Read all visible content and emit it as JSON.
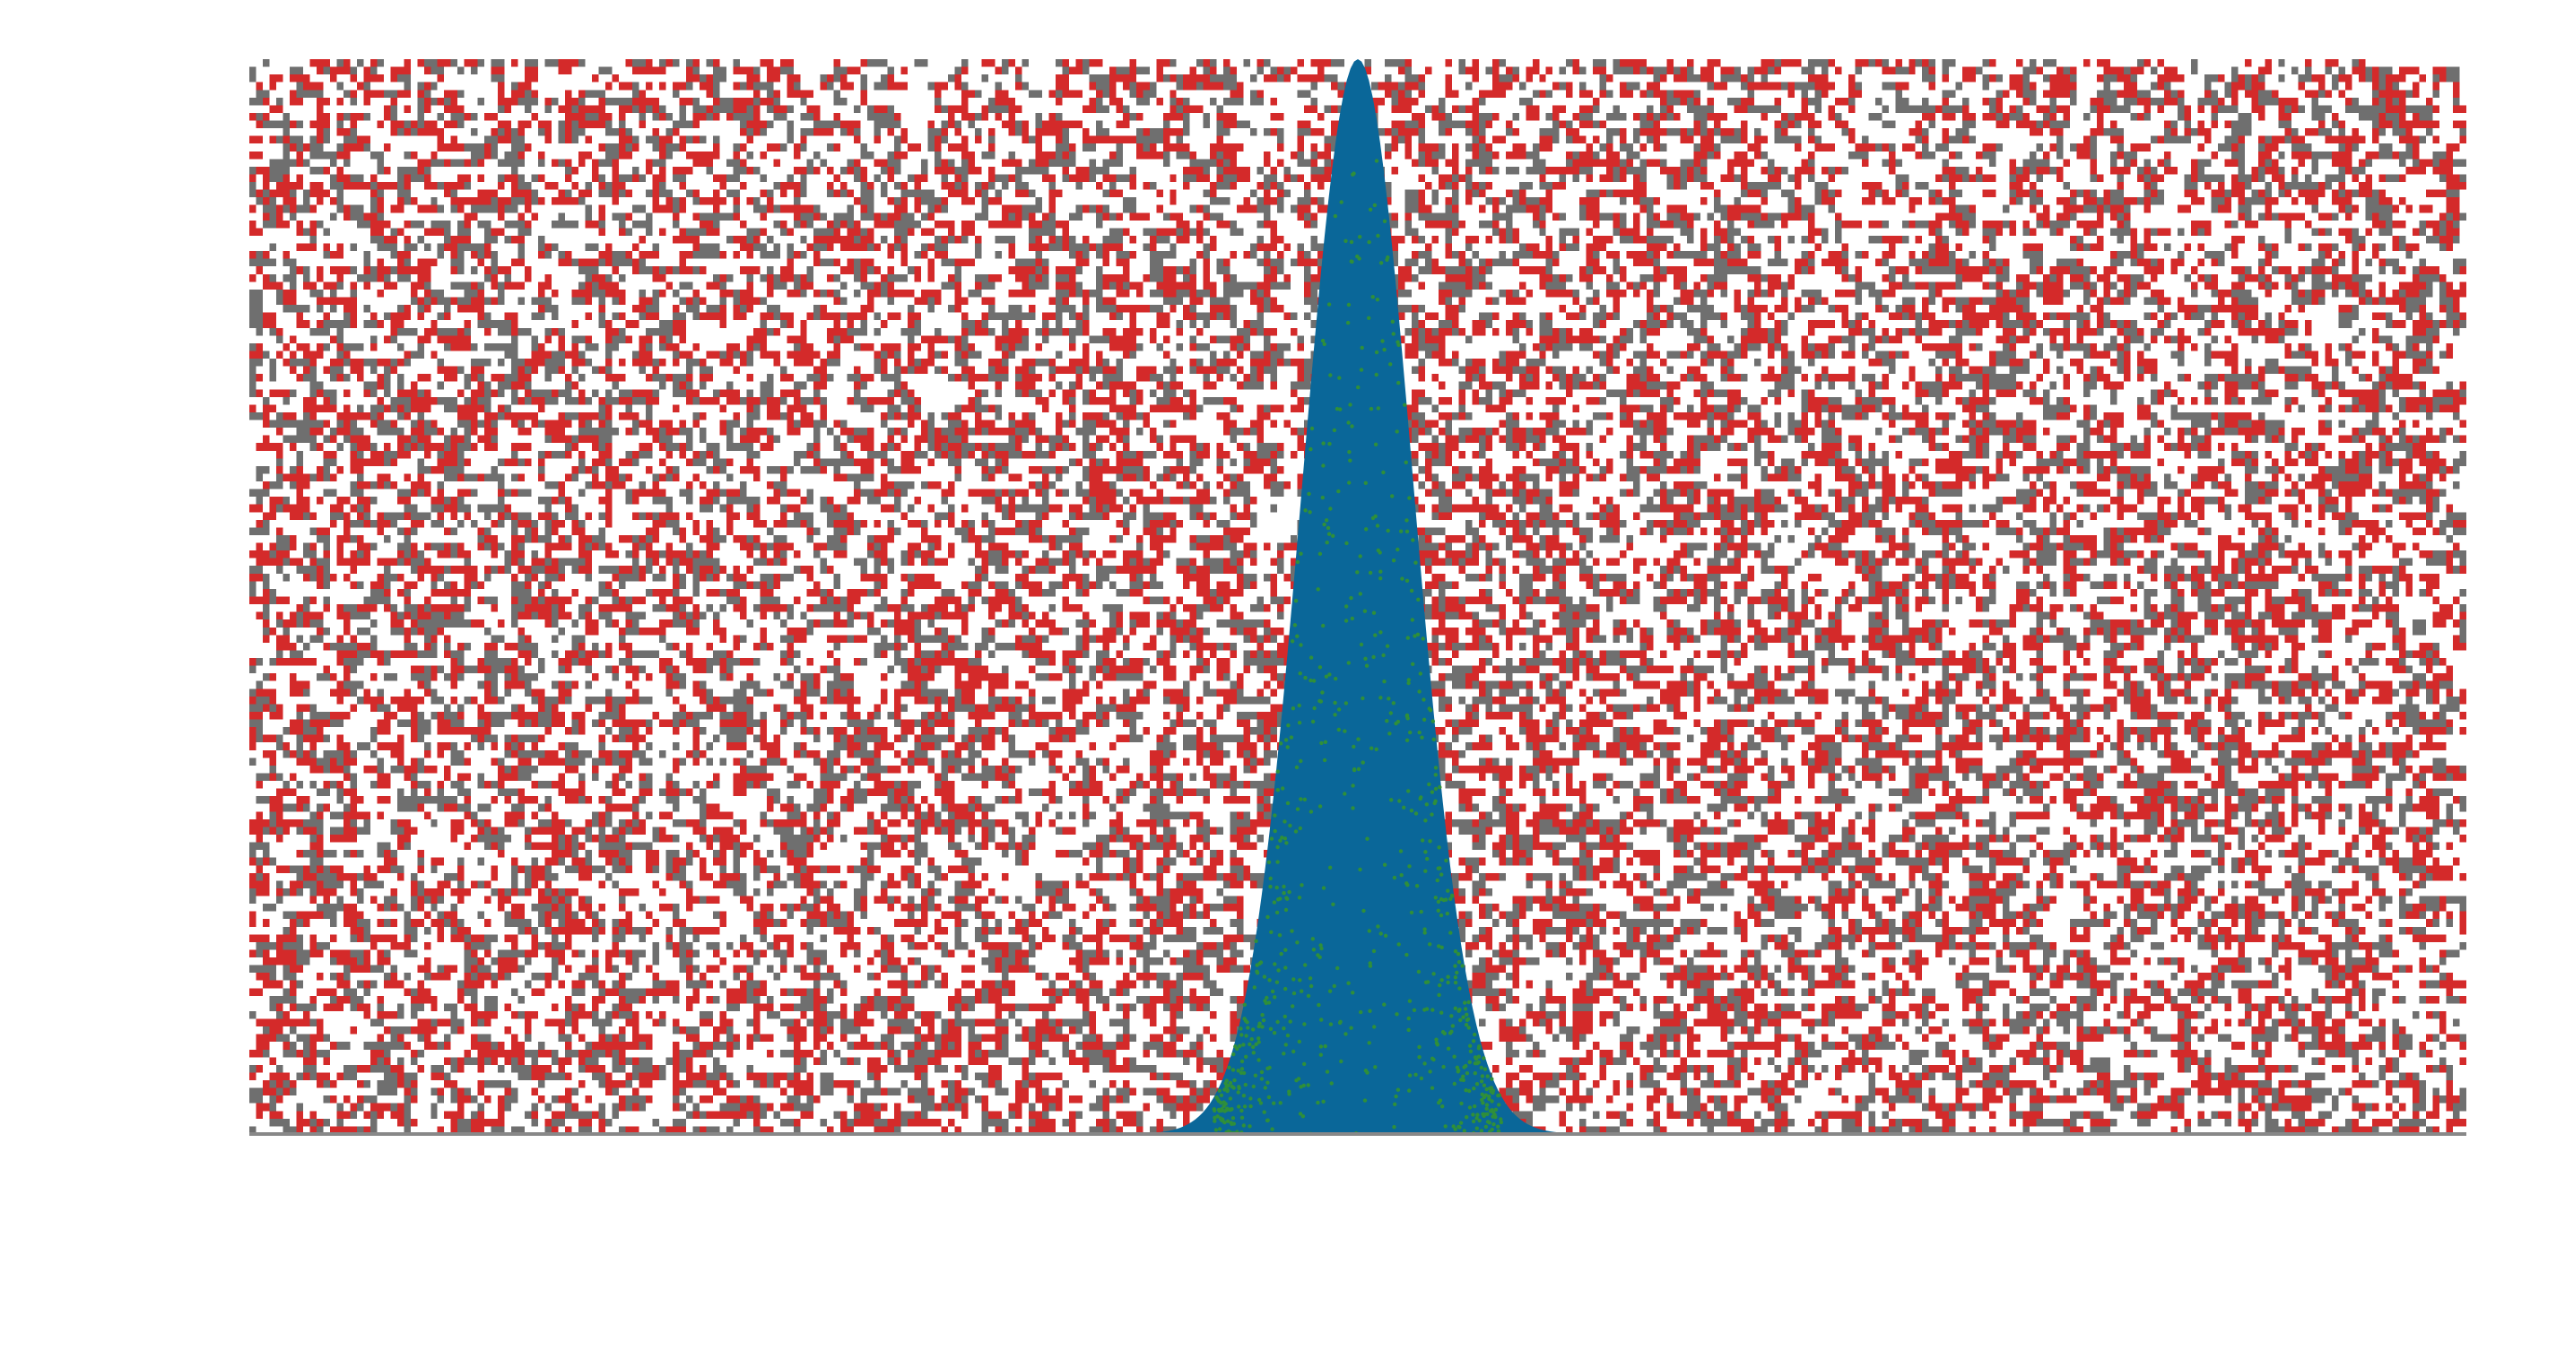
{
  "chart_data": {
    "type": "area",
    "title": "",
    "xlabel": "",
    "ylabel": "",
    "grid": false,
    "xlim": [
      -1,
      1
    ],
    "ylim": [
      0,
      1
    ],
    "peak": {
      "center": 0,
      "height": 1,
      "sigma": 0.05
    },
    "background_noise": {
      "cell_columns": 330,
      "cell_rows": 140,
      "occupancy": 0.47,
      "red_share": 0.55
    },
    "colors": {
      "peak_fill": "#0a6799",
      "peak_dots": "#2f8f3a",
      "noise_red": "#d42a2a",
      "noise_gray": "#6f6f6f",
      "baseline": "#888888",
      "background": "#ffffff"
    }
  }
}
